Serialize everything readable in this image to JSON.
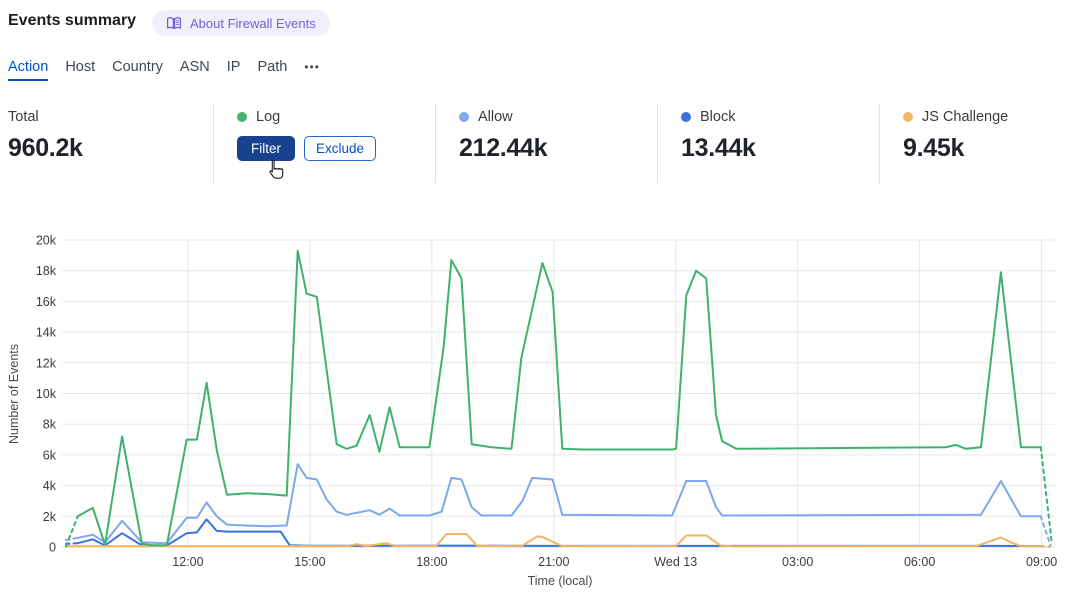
{
  "header": {
    "title": "Events summary",
    "about_badge": "About Firewall Events"
  },
  "icons": {
    "badge_icon": "open-book-icon",
    "more_icon": "ellipsis-icon",
    "cursor_icon": "hand-pointer-icon"
  },
  "tabs": {
    "items": [
      "Action",
      "Host",
      "Country",
      "ASN",
      "IP",
      "Path"
    ],
    "active": "Action",
    "more_label": "•••"
  },
  "stats": {
    "total": {
      "label": "Total",
      "value": "960.2k"
    },
    "log": {
      "label": "Log",
      "dot_color": "#41b36c",
      "filter_label": "Filter",
      "exclude_label": "Exclude"
    },
    "allow": {
      "label": "Allow",
      "value": "212.44k",
      "dot_color": "#7da8ec"
    },
    "block": {
      "label": "Block",
      "value": "13.44k",
      "dot_color": "#3a73de"
    },
    "js_challenge": {
      "label": "JS Challenge",
      "value": "9.45k",
      "dot_color": "#f2b564"
    }
  },
  "colors": {
    "accent_blue": "#0051c3",
    "filter_button": "#16428e",
    "badge_text": "#6b63d6",
    "grid": "#e7e7e7"
  },
  "chart_data": {
    "type": "line",
    "title": "",
    "xlabel": "Time (local)",
    "ylabel": "Number of Events",
    "units": "values are thousands of events; x = hours since 09:00 local (Tue)",
    "xlim": [
      0,
      24.33
    ],
    "ylim": [
      0,
      20
    ],
    "grid": true,
    "legend_position": "none (stats row above acts as legend)",
    "y_ticks": [
      {
        "v": 0,
        "label": "0"
      },
      {
        "v": 2,
        "label": "2k"
      },
      {
        "v": 4,
        "label": "4k"
      },
      {
        "v": 6,
        "label": "6k"
      },
      {
        "v": 8,
        "label": "8k"
      },
      {
        "v": 10,
        "label": "10k"
      },
      {
        "v": 12,
        "label": "12k"
      },
      {
        "v": 14,
        "label": "14k"
      },
      {
        "v": 16,
        "label": "16k"
      },
      {
        "v": 18,
        "label": "18k"
      },
      {
        "v": 20,
        "label": "20k"
      }
    ],
    "x_ticks": [
      {
        "t": 3,
        "label": "12:00"
      },
      {
        "t": 6,
        "label": "15:00"
      },
      {
        "t": 9,
        "label": "18:00"
      },
      {
        "t": 12,
        "label": "21:00"
      },
      {
        "t": 15,
        "label": "Wed 13"
      },
      {
        "t": 18,
        "label": "03:00"
      },
      {
        "t": 21,
        "label": "06:00"
      },
      {
        "t": 24,
        "label": "09:00"
      }
    ],
    "series": [
      {
        "name": "Log",
        "color": "#3eb26d",
        "dashed_head": [
          [
            0,
            0.05
          ],
          [
            0.29,
            2.0
          ]
        ],
        "points": [
          [
            0.29,
            2.0
          ],
          [
            0.66,
            2.55
          ],
          [
            0.96,
            0.15
          ],
          [
            1.38,
            7.2
          ],
          [
            1.87,
            0.2
          ],
          [
            2.11,
            0.12
          ],
          [
            2.48,
            0.12
          ],
          [
            2.97,
            7.0
          ],
          [
            3.22,
            7.0
          ],
          [
            3.46,
            10.7
          ],
          [
            3.71,
            6.3
          ],
          [
            3.96,
            3.4
          ],
          [
            4.45,
            3.5
          ],
          [
            4.94,
            3.45
          ],
          [
            5.43,
            3.35
          ],
          [
            5.7,
            19.3
          ],
          [
            5.92,
            16.5
          ],
          [
            6.17,
            16.3
          ],
          [
            6.66,
            6.7
          ],
          [
            6.9,
            6.4
          ],
          [
            7.15,
            6.6
          ],
          [
            7.47,
            8.6
          ],
          [
            7.71,
            6.2
          ],
          [
            7.96,
            9.1
          ],
          [
            8.21,
            6.5
          ],
          [
            8.94,
            6.5
          ],
          [
            9.29,
            13.0
          ],
          [
            9.48,
            18.7
          ],
          [
            9.73,
            17.5
          ],
          [
            9.98,
            6.7
          ],
          [
            10.47,
            6.5
          ],
          [
            10.96,
            6.4
          ],
          [
            11.2,
            12.3
          ],
          [
            11.72,
            18.5
          ],
          [
            11.97,
            16.6
          ],
          [
            12.21,
            6.4
          ],
          [
            12.7,
            6.35
          ],
          [
            14.91,
            6.35
          ],
          [
            15.01,
            6.4
          ],
          [
            15.26,
            16.4
          ],
          [
            15.5,
            18.0
          ],
          [
            15.75,
            17.5
          ],
          [
            15.99,
            8.6
          ],
          [
            16.14,
            6.9
          ],
          [
            16.49,
            6.4
          ],
          [
            21.65,
            6.5
          ],
          [
            21.89,
            6.65
          ],
          [
            22.14,
            6.4
          ],
          [
            22.51,
            6.5
          ],
          [
            23.0,
            17.9
          ],
          [
            23.49,
            6.5
          ],
          [
            23.98,
            6.5
          ]
        ],
        "dashed_tail": [
          [
            23.98,
            6.5
          ],
          [
            24.25,
            0.3
          ]
        ]
      },
      {
        "name": "Allow",
        "color": "#7da8ec",
        "dashed_head": [
          [
            0,
            0.45
          ],
          [
            0.29,
            0.6
          ]
        ],
        "points": [
          [
            0.29,
            0.6
          ],
          [
            0.66,
            0.8
          ],
          [
            0.96,
            0.3
          ],
          [
            1.38,
            1.7
          ],
          [
            1.87,
            0.3
          ],
          [
            2.48,
            0.25
          ],
          [
            2.97,
            1.9
          ],
          [
            3.22,
            1.9
          ],
          [
            3.46,
            2.9
          ],
          [
            3.71,
            2.0
          ],
          [
            3.96,
            1.45
          ],
          [
            4.94,
            1.35
          ],
          [
            5.43,
            1.4
          ],
          [
            5.7,
            5.4
          ],
          [
            5.92,
            4.5
          ],
          [
            6.17,
            4.4
          ],
          [
            6.41,
            3.1
          ],
          [
            6.66,
            2.3
          ],
          [
            6.9,
            2.1
          ],
          [
            7.47,
            2.4
          ],
          [
            7.71,
            2.1
          ],
          [
            7.96,
            2.5
          ],
          [
            8.21,
            2.05
          ],
          [
            8.94,
            2.05
          ],
          [
            9.24,
            2.3
          ],
          [
            9.48,
            4.5
          ],
          [
            9.73,
            4.4
          ],
          [
            9.98,
            2.6
          ],
          [
            10.22,
            2.05
          ],
          [
            10.96,
            2.05
          ],
          [
            11.23,
            3.0
          ],
          [
            11.47,
            4.5
          ],
          [
            11.97,
            4.4
          ],
          [
            12.21,
            2.1
          ],
          [
            14.91,
            2.05
          ],
          [
            15.26,
            4.3
          ],
          [
            15.75,
            4.3
          ],
          [
            15.99,
            2.6
          ],
          [
            16.14,
            2.05
          ],
          [
            22.51,
            2.1
          ],
          [
            23.0,
            4.3
          ],
          [
            23.49,
            2.0
          ],
          [
            23.98,
            2.0
          ]
        ],
        "dashed_tail": [
          [
            23.98,
            2.0
          ],
          [
            24.22,
            0.1
          ]
        ]
      },
      {
        "name": "Block",
        "color": "#3a73de",
        "dashed_head": [
          [
            0,
            0.2
          ],
          [
            0.29,
            0.25
          ]
        ],
        "points": [
          [
            0.29,
            0.25
          ],
          [
            0.66,
            0.5
          ],
          [
            0.96,
            0.1
          ],
          [
            1.38,
            0.9
          ],
          [
            1.87,
            0.1
          ],
          [
            2.48,
            0.1
          ],
          [
            2.97,
            0.9
          ],
          [
            3.22,
            0.95
          ],
          [
            3.46,
            1.8
          ],
          [
            3.71,
            1.05
          ],
          [
            3.96,
            1.0
          ],
          [
            5.28,
            1.0
          ],
          [
            5.5,
            0.12
          ],
          [
            6.0,
            0.08
          ],
          [
            9.48,
            0.09
          ],
          [
            12.0,
            0.07
          ],
          [
            16.0,
            0.07
          ],
          [
            20.0,
            0.07
          ],
          [
            23.0,
            0.07
          ],
          [
            23.98,
            0.06
          ]
        ],
        "dashed_tail": [
          [
            23.98,
            0.06
          ],
          [
            24.2,
            0.02
          ]
        ]
      },
      {
        "name": "JS Challenge",
        "color": "#f2b564",
        "dashed_head": [],
        "points": [
          [
            0,
            0.05
          ],
          [
            2.97,
            0.06
          ],
          [
            6.9,
            0.06
          ],
          [
            7.15,
            0.18
          ],
          [
            7.4,
            0.07
          ],
          [
            7.88,
            0.25
          ],
          [
            8.1,
            0.07
          ],
          [
            9.11,
            0.08
          ],
          [
            9.36,
            0.85
          ],
          [
            9.85,
            0.85
          ],
          [
            10.1,
            0.12
          ],
          [
            10.5,
            0.06
          ],
          [
            11.23,
            0.1
          ],
          [
            11.6,
            0.7
          ],
          [
            11.72,
            0.65
          ],
          [
            12.21,
            0.06
          ],
          [
            15.01,
            0.07
          ],
          [
            15.26,
            0.75
          ],
          [
            15.75,
            0.75
          ],
          [
            16.1,
            0.1
          ],
          [
            16.4,
            0.05
          ],
          [
            22.39,
            0.06
          ],
          [
            23.0,
            0.62
          ],
          [
            23.25,
            0.3
          ],
          [
            23.49,
            0.06
          ],
          [
            23.98,
            0.05
          ]
        ],
        "dashed_tail": [
          [
            23.98,
            0.05
          ],
          [
            24.2,
            0.02
          ]
        ]
      }
    ]
  }
}
